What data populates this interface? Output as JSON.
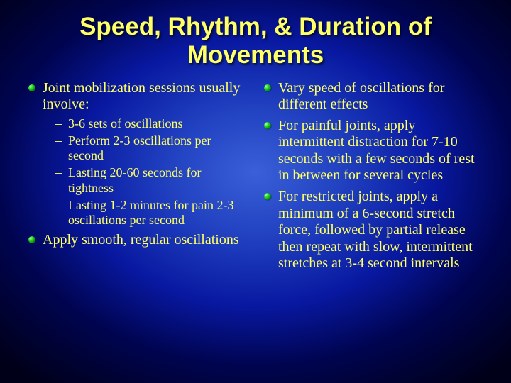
{
  "title": "Speed, Rhythm, & Duration of Movements",
  "left": {
    "items": [
      {
        "text": "Joint mobilization sessions usually involve:",
        "sub": [
          "3-6 sets of oscillations",
          "Perform 2-3 oscillations per second",
          "Lasting 20-60 seconds for tightness",
          "Lasting 1-2 minutes for pain 2-3 oscillations per second"
        ]
      },
      {
        "text": "Apply smooth, regular oscillations",
        "sub": []
      }
    ]
  },
  "right": {
    "items": [
      {
        "text": "Vary speed of oscillations for different effects",
        "sub": []
      },
      {
        "text": "For painful joints, apply intermittent distraction for 7-10 seconds with a few seconds of rest in between for several cycles",
        "sub": []
      },
      {
        "text": "For restricted joints, apply a minimum of a 6-second stretch force, followed by partial release then repeat with slow, intermittent stretches at 3-4 second intervals",
        "sub": []
      }
    ]
  },
  "colors": {
    "text": "#ffff66",
    "bullet_gradient": [
      "#b0ffb0",
      "#30e030",
      "#008800",
      "#004000"
    ],
    "background_gradient": [
      "#3a5fd8",
      "#2040c0",
      "#0818a0",
      "#000450",
      "#000018"
    ]
  },
  "fonts": {
    "title_family": "Arial",
    "title_size_pt": 26,
    "body_family": "Times New Roman",
    "body_size_pt": 15,
    "sub_size_pt": 13
  }
}
